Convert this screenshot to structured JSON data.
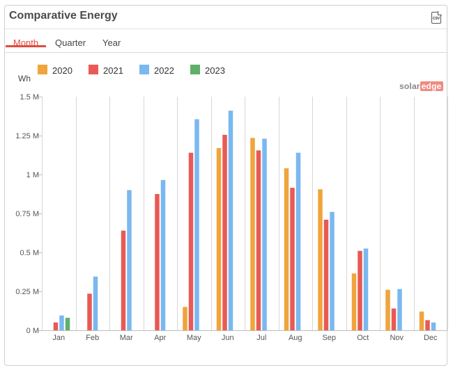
{
  "panel": {
    "title": "Comparative Energy",
    "csv_icon_label": "CSV"
  },
  "tabs": [
    {
      "label": "Month",
      "active": true
    },
    {
      "label": "Quarter",
      "active": false
    },
    {
      "label": "Year",
      "active": false
    }
  ],
  "logo": {
    "part1": "solar",
    "part2": "edge"
  },
  "colors": {
    "accent": "#e24b3f"
  },
  "chart_data": {
    "type": "bar",
    "ylabel": "Wh",
    "ylim": [
      0,
      1500000
    ],
    "yticks": [
      {
        "value": 0,
        "label": "0 M"
      },
      {
        "value": 250000,
        "label": "0.25 M"
      },
      {
        "value": 500000,
        "label": "0.5 M"
      },
      {
        "value": 750000,
        "label": "0.75 M"
      },
      {
        "value": 1000000,
        "label": "1 M"
      },
      {
        "value": 1250000,
        "label": "1.25 M"
      },
      {
        "value": 1500000,
        "label": "1.5 M"
      }
    ],
    "categories": [
      "Jan",
      "Feb",
      "Mar",
      "Apr",
      "May",
      "Jun",
      "Jul",
      "Aug",
      "Sep",
      "Oct",
      "Nov",
      "Dec"
    ],
    "legend_position": "top-left",
    "grid": "vertical",
    "series": [
      {
        "name": "2020",
        "color": "#f0a43c",
        "values": [
          null,
          null,
          null,
          null,
          150000,
          1170000,
          1235000,
          1040000,
          905000,
          365000,
          260000,
          120000
        ]
      },
      {
        "name": "2021",
        "color": "#e85a55",
        "values": [
          50000,
          235000,
          640000,
          875000,
          1140000,
          1255000,
          1155000,
          915000,
          710000,
          510000,
          140000,
          65000
        ]
      },
      {
        "name": "2022",
        "color": "#7ab8f0",
        "values": [
          95000,
          345000,
          900000,
          965000,
          1355000,
          1410000,
          1230000,
          1140000,
          760000,
          525000,
          265000,
          50000
        ]
      },
      {
        "name": "2023",
        "color": "#5fb06a",
        "values": [
          80000,
          null,
          null,
          null,
          null,
          null,
          null,
          null,
          null,
          null,
          null,
          null
        ]
      }
    ]
  }
}
